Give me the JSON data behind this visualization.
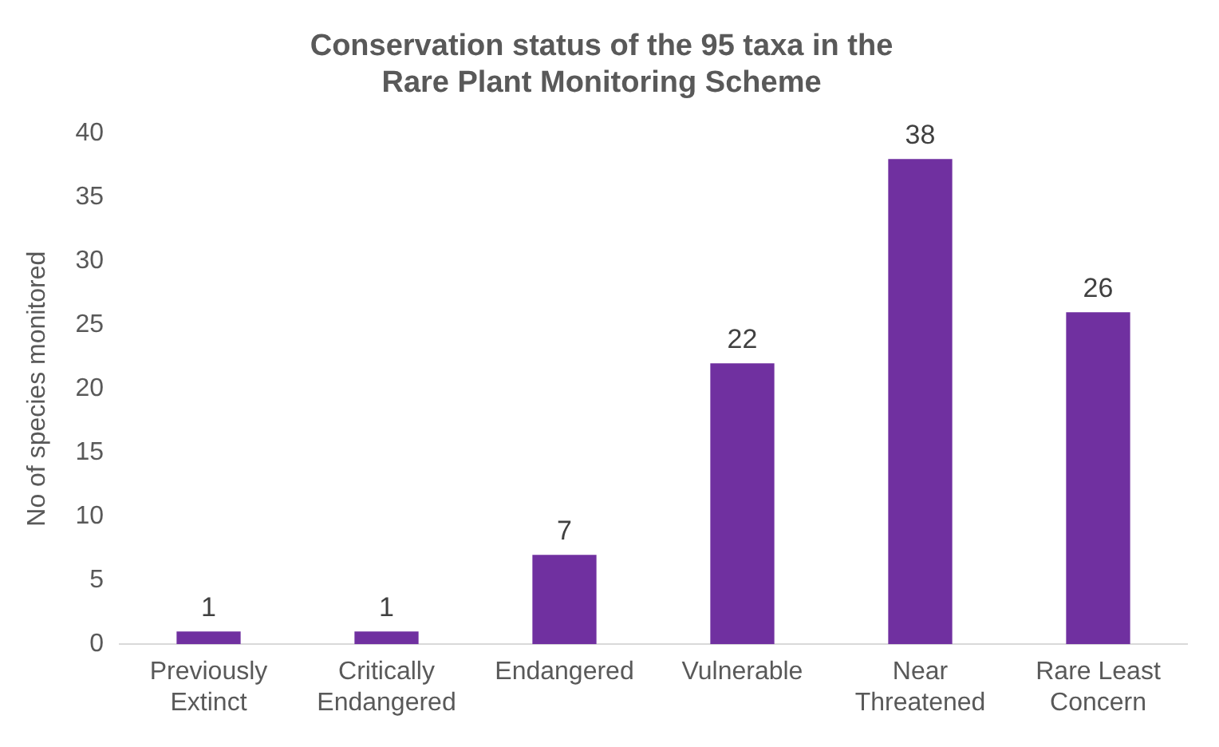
{
  "chart_data": {
    "type": "bar",
    "title": "Conservation status of the 95 taxa in the\nRare Plant Monitoring Scheme",
    "ylabel": "No of species monitored",
    "categories": [
      "Previously\nExtinct",
      "Critically\nEndangered",
      "Endangered",
      "Vulnerable",
      "Near\nThreatened",
      "Rare Least\nConcern"
    ],
    "values": [
      1,
      1,
      7,
      22,
      38,
      26
    ],
    "color": "#7030a0",
    "ylim": [
      0,
      40
    ],
    "yticks": [
      0,
      5,
      10,
      15,
      20,
      25,
      30,
      35,
      40
    ],
    "grid": false,
    "legend": false,
    "data_labels": true
  }
}
